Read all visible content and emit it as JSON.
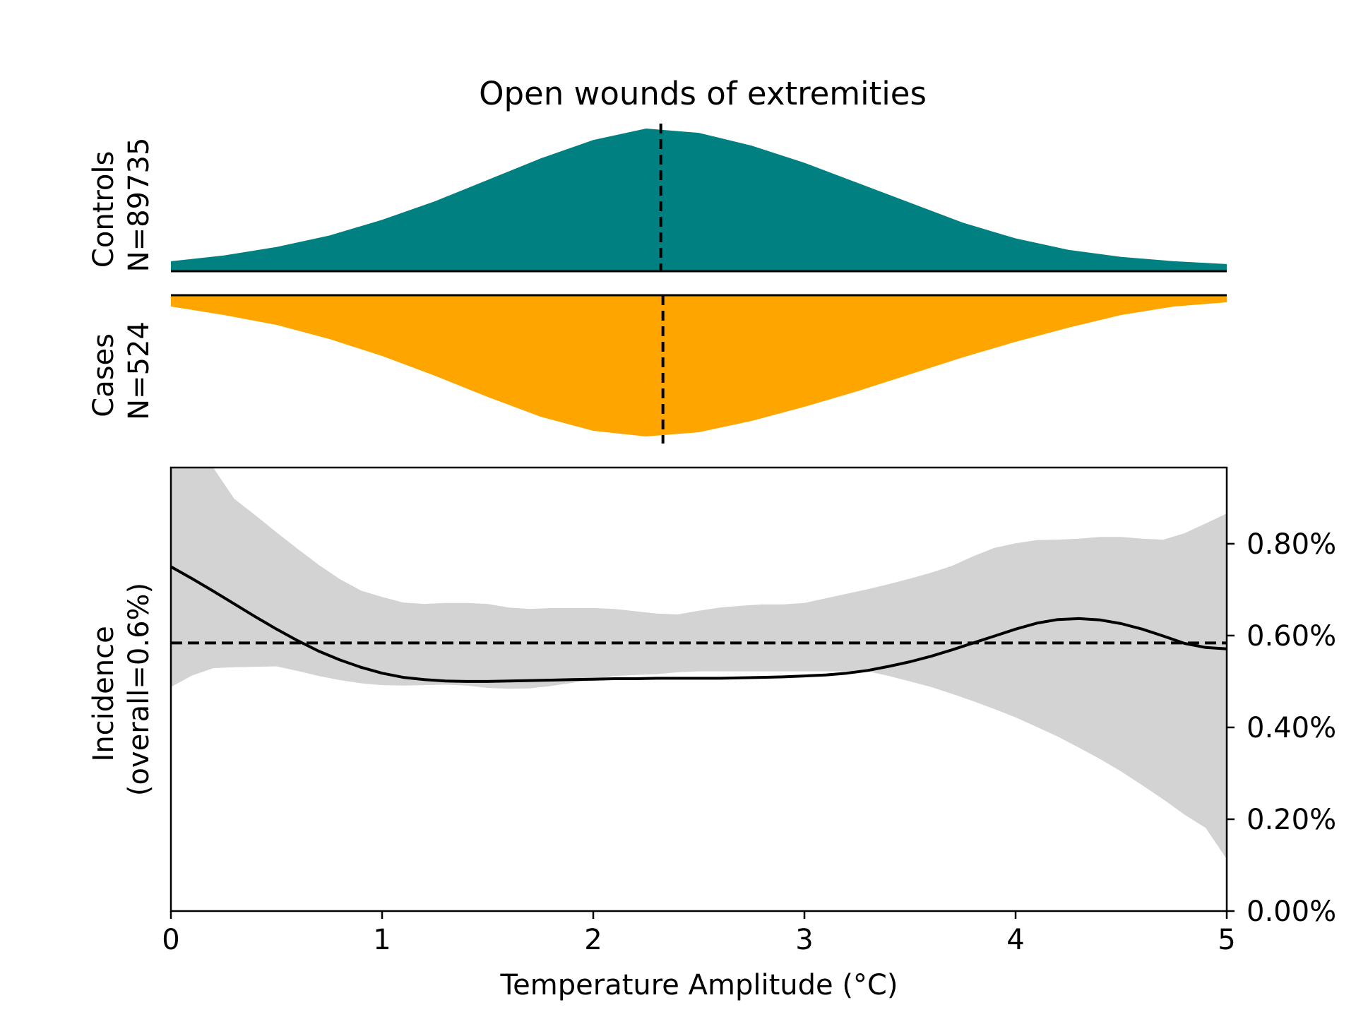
{
  "chart_data": {
    "type": "area",
    "title": "Open wounds of extremities",
    "xlabel": "Temperature Amplitude (°C)",
    "xlim": [
      0,
      5
    ],
    "xticks": [
      0,
      1,
      2,
      3,
      4,
      5
    ],
    "xtick_labels": [
      "0",
      "1",
      "2",
      "3",
      "4",
      "5"
    ],
    "colors": {
      "controls": "#008080",
      "cases": "#FFA500",
      "ci_band": "#D3D3D3",
      "line": "#000000"
    },
    "distributions": [
      {
        "name": "Controls",
        "label_line1": "Controls",
        "label_line2": "N=89735",
        "median": 2.32,
        "x": [
          0,
          0.25,
          0.5,
          0.75,
          1.0,
          1.25,
          1.5,
          1.75,
          2.0,
          2.25,
          2.5,
          2.75,
          3.0,
          3.25,
          3.5,
          3.75,
          4.0,
          4.25,
          4.5,
          4.75,
          5.0
        ],
        "density": [
          0.07,
          0.11,
          0.17,
          0.25,
          0.36,
          0.49,
          0.64,
          0.79,
          0.92,
          1.0,
          0.97,
          0.88,
          0.76,
          0.62,
          0.48,
          0.34,
          0.23,
          0.15,
          0.1,
          0.07,
          0.05
        ]
      },
      {
        "name": "Cases",
        "label_line1": "Cases",
        "label_line2": "N=524",
        "median": 2.33,
        "x": [
          0,
          0.25,
          0.5,
          0.75,
          1.0,
          1.25,
          1.5,
          1.75,
          2.0,
          2.25,
          2.5,
          2.75,
          3.0,
          3.25,
          3.5,
          3.75,
          4.0,
          4.25,
          4.5,
          4.75,
          5.0
        ],
        "density": [
          0.08,
          0.14,
          0.21,
          0.31,
          0.43,
          0.57,
          0.72,
          0.86,
          0.96,
          1.0,
          0.97,
          0.89,
          0.79,
          0.68,
          0.56,
          0.44,
          0.33,
          0.23,
          0.14,
          0.08,
          0.05
        ]
      }
    ],
    "incidence": {
      "ylabel_line1": "Incidence",
      "ylabel_line2": "(overall=0.6%)",
      "ylim": [
        0,
        0.00966
      ],
      "yticks": [
        0,
        0.002,
        0.004,
        0.006,
        0.008
      ],
      "ytick_labels": [
        "0.00%",
        "0.20%",
        "0.40%",
        "0.60%",
        "0.80%"
      ],
      "overall": 0.00584,
      "x": [
        0,
        0.1,
        0.2,
        0.3,
        0.4,
        0.5,
        0.6,
        0.7,
        0.8,
        0.9,
        1.0,
        1.1,
        1.2,
        1.3,
        1.4,
        1.5,
        1.6,
        1.7,
        1.8,
        1.9,
        2.0,
        2.1,
        2.2,
        2.3,
        2.4,
        2.5,
        2.6,
        2.7,
        2.8,
        2.9,
        3.0,
        3.1,
        3.2,
        3.3,
        3.4,
        3.5,
        3.6,
        3.7,
        3.8,
        3.9,
        4.0,
        4.1,
        4.2,
        4.3,
        4.4,
        4.5,
        4.6,
        4.7,
        4.8,
        4.9,
        5.0
      ],
      "y": [
        0.0075,
        0.00724,
        0.00697,
        0.00669,
        0.00641,
        0.00614,
        0.00589,
        0.00566,
        0.00547,
        0.00531,
        0.00518,
        0.00509,
        0.00504,
        0.00501,
        0.005,
        0.005,
        0.00501,
        0.00502,
        0.00503,
        0.00504,
        0.00505,
        0.00506,
        0.00506,
        0.00507,
        0.00507,
        0.00507,
        0.00507,
        0.00508,
        0.00509,
        0.0051,
        0.00512,
        0.00514,
        0.00518,
        0.00524,
        0.00533,
        0.00543,
        0.00555,
        0.00569,
        0.00584,
        0.00599,
        0.00614,
        0.00627,
        0.00635,
        0.00637,
        0.00634,
        0.00626,
        0.00614,
        0.00599,
        0.00583,
        0.00574,
        0.00571
      ],
      "ci_low": [
        0.00488,
        0.00513,
        0.00529,
        0.00531,
        0.00532,
        0.00533,
        0.00523,
        0.00512,
        0.00503,
        0.00496,
        0.00492,
        0.00491,
        0.00492,
        0.00493,
        0.00491,
        0.00486,
        0.00484,
        0.00485,
        0.0049,
        0.00497,
        0.00505,
        0.00512,
        0.00514,
        0.00516,
        0.0052,
        0.00522,
        0.00522,
        0.00522,
        0.00522,
        0.00522,
        0.00522,
        0.00522,
        0.00522,
        0.00522,
        0.00512,
        0.005,
        0.00488,
        0.00473,
        0.00457,
        0.0044,
        0.00422,
        0.00401,
        0.0038,
        0.00356,
        0.00331,
        0.00304,
        0.00274,
        0.00243,
        0.0021,
        0.00181,
        0.00113
      ],
      "ci_high": [
        0.01,
        0.01,
        0.00966,
        0.00898,
        0.00862,
        0.00825,
        0.00789,
        0.00754,
        0.00723,
        0.00698,
        0.00684,
        0.00672,
        0.00669,
        0.00671,
        0.00671,
        0.00669,
        0.00661,
        0.00658,
        0.0066,
        0.0066,
        0.0066,
        0.00658,
        0.00653,
        0.00648,
        0.00646,
        0.00654,
        0.00661,
        0.00665,
        0.00668,
        0.00668,
        0.00671,
        0.00681,
        0.00691,
        0.00701,
        0.00712,
        0.00724,
        0.00737,
        0.00752,
        0.00773,
        0.00791,
        0.00801,
        0.00808,
        0.00809,
        0.00811,
        0.00815,
        0.00815,
        0.00811,
        0.00809,
        0.00823,
        0.00844,
        0.00866
      ]
    }
  }
}
